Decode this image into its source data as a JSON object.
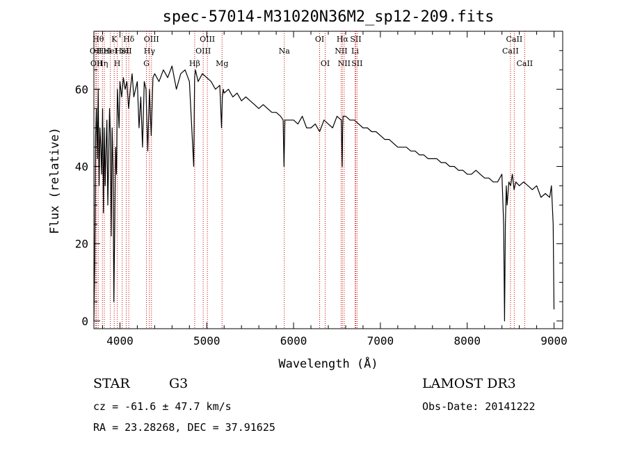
{
  "chart_data": {
    "type": "line",
    "title": "spec-57014-M31020N36M2_sp12-209.fits",
    "xlabel": "Wavelength (Å)",
    "ylabel": "Flux (relative)",
    "xlim": [
      3700,
      9100
    ],
    "ylim": [
      -2,
      75
    ],
    "xticks": [
      4000,
      5000,
      6000,
      7000,
      8000,
      9000
    ],
    "yticks": [
      0,
      20,
      40,
      60
    ],
    "grid": false,
    "line_color": "#000000",
    "marker_color": "#cc0000",
    "series": [
      {
        "x": [
          3700,
          3710,
          3720,
          3730,
          3740,
          3750,
          3760,
          3770,
          3780,
          3790,
          3800,
          3810,
          3820,
          3830,
          3840,
          3850,
          3860,
          3870,
          3880,
          3890,
          3900,
          3910,
          3920,
          3930,
          3940,
          3950,
          3960,
          3970,
          3980,
          3990,
          4000,
          4020,
          4040,
          4060,
          4080,
          4100,
          4120,
          4140,
          4160,
          4180,
          4200,
          4220,
          4240,
          4260,
          4280,
          4300,
          4320,
          4340,
          4360,
          4380,
          4400,
          4450,
          4500,
          4550,
          4600,
          4650,
          4700,
          4750,
          4800,
          4850,
          4860,
          4870,
          4900,
          4950,
          5000,
          5050,
          5100,
          5150,
          5170,
          5180,
          5190,
          5200,
          5250,
          5300,
          5350,
          5400,
          5450,
          5500,
          5550,
          5600,
          5650,
          5700,
          5750,
          5800,
          5850,
          5880,
          5890,
          5900,
          5950,
          6000,
          6050,
          6100,
          6150,
          6200,
          6250,
          6300,
          6350,
          6400,
          6450,
          6500,
          6550,
          6560,
          6565,
          6570,
          6600,
          6650,
          6700,
          6750,
          6800,
          6850,
          6900,
          6950,
          7000,
          7050,
          7100,
          7150,
          7200,
          7250,
          7300,
          7350,
          7400,
          7450,
          7500,
          7550,
          7600,
          7650,
          7700,
          7750,
          7800,
          7850,
          7900,
          7950,
          8000,
          8050,
          8100,
          8150,
          8200,
          8250,
          8300,
          8350,
          8400,
          8420,
          8430,
          8440,
          8450,
          8460,
          8480,
          8500,
          8520,
          8540,
          8560,
          8600,
          8650,
          8700,
          8750,
          8800,
          8850,
          8900,
          8950,
          8970,
          8990,
          9000
        ],
        "y": [
          0,
          15,
          48,
          55,
          42,
          60,
          35,
          50,
          45,
          38,
          55,
          28,
          50,
          35,
          45,
          52,
          30,
          42,
          55,
          48,
          22,
          50,
          40,
          5,
          25,
          45,
          38,
          60,
          55,
          50,
          62,
          58,
          63,
          60,
          62,
          55,
          60,
          64,
          58,
          60,
          62,
          50,
          58,
          45,
          62,
          60,
          44,
          60,
          48,
          63,
          64,
          62,
          65,
          63,
          66,
          60,
          64,
          65,
          62,
          40,
          63,
          65,
          62,
          64,
          63,
          62,
          60,
          61,
          50,
          58,
          60,
          59,
          60,
          58,
          59,
          57,
          58,
          57,
          56,
          55,
          56,
          55,
          54,
          54,
          53,
          52,
          40,
          52,
          52,
          52,
          51,
          53,
          50,
          50,
          51,
          49,
          52,
          51,
          50,
          53,
          52,
          40,
          50,
          53,
          53,
          52,
          52,
          51,
          50,
          50,
          49,
          49,
          48,
          47,
          47,
          46,
          45,
          45,
          45,
          44,
          44,
          43,
          43,
          42,
          42,
          42,
          41,
          41,
          40,
          40,
          39,
          39,
          38,
          38,
          39,
          38,
          37,
          37,
          36,
          36,
          38,
          25,
          0,
          25,
          35,
          30,
          36,
          35,
          38,
          34,
          36,
          35,
          36,
          35,
          34,
          35,
          32,
          33,
          32,
          35,
          25,
          3
        ]
      }
    ],
    "line_markers": [
      {
        "wl": 3722,
        "label": "OII",
        "row": 2
      },
      {
        "wl": 3730,
        "label": "OII",
        "row": 3
      },
      {
        "wl": 3750,
        "label": "Hθ",
        "row": 1
      },
      {
        "wl": 3798,
        "label": "Hη",
        "row": 3
      },
      {
        "wl": 3820,
        "label": "HeI",
        "row": 2
      },
      {
        "wl": 3889,
        "label": "HeI",
        "row": 2
      },
      {
        "wl": 3934,
        "label": "K",
        "row": 1
      },
      {
        "wl": 3969,
        "label": "H",
        "row": 3
      },
      {
        "wl": 4026,
        "label": "HeI",
        "row": 2
      },
      {
        "wl": 4072,
        "label": "SII",
        "row": 2
      },
      {
        "wl": 4102,
        "label": "Hδ",
        "row": 1
      },
      {
        "wl": 4305,
        "label": "G",
        "row": 3
      },
      {
        "wl": 4340,
        "label": "Hγ",
        "row": 2
      },
      {
        "wl": 4363,
        "label": "OIII",
        "row": 1
      },
      {
        "wl": 4861,
        "label": "Hβ",
        "row": 3
      },
      {
        "wl": 4959,
        "label": "OIII",
        "row": 2
      },
      {
        "wl": 5007,
        "label": "OIII",
        "row": 1
      },
      {
        "wl": 5176,
        "label": "Mg",
        "row": 3
      },
      {
        "wl": 5893,
        "label": "Na",
        "row": 2
      },
      {
        "wl": 6300,
        "label": "OI",
        "row": 1
      },
      {
        "wl": 6364,
        "label": "OI",
        "row": 3
      },
      {
        "wl": 6548,
        "label": "NII",
        "row": 2
      },
      {
        "wl": 6563,
        "label": "Hα",
        "row": 1
      },
      {
        "wl": 6583,
        "label": "NII",
        "row": 3
      },
      {
        "wl": 6708,
        "label": "Li",
        "row": 2
      },
      {
        "wl": 6716,
        "label": "SII",
        "row": 1
      },
      {
        "wl": 6731,
        "label": "SII",
        "row": 3
      },
      {
        "wl": 8498,
        "label": "CaII",
        "row": 2
      },
      {
        "wl": 8542,
        "label": "CaII",
        "row": 1
      },
      {
        "wl": 8662,
        "label": "CaII",
        "row": 3
      }
    ]
  },
  "info": {
    "class": "STAR",
    "subclass": "G3",
    "survey": "LAMOST DR3",
    "cz": "cz = -61.6 ± 47.7 km/s",
    "obs_date": "Obs-Date: 20141222",
    "radec": "RA =  23.28268, DEC =  37.91625"
  }
}
